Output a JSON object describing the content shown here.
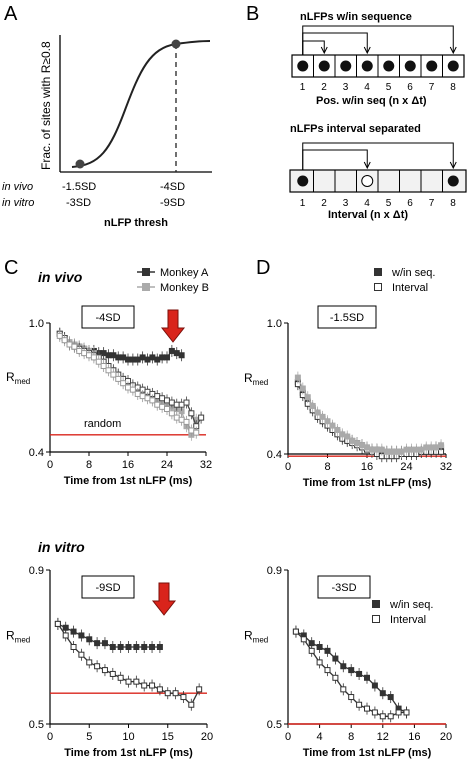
{
  "panels": {
    "A": {
      "letter": "A",
      "ylabel": "Frac. of sites with R≥0.8",
      "xlabel": "nLFP thresh",
      "row_vivo": "in vivo",
      "row_vitro": "in vitro",
      "tick_left_vivo": "-1.5SD",
      "tick_left_vitro": "-3SD",
      "tick_right_vivo": "-4SD",
      "tick_right_vitro": "-9SD"
    },
    "B": {
      "letter": "B",
      "seq_title": "nLFPs w/in sequence",
      "seq_xlabel": "Pos. w/in seq (n x Δt)",
      "int_title": "nLFPs interval separated",
      "int_xlabel": "Interval (n x Δt)",
      "positions": [
        "1",
        "2",
        "3",
        "4",
        "5",
        "6",
        "7",
        "8"
      ]
    },
    "C": {
      "letter": "C",
      "row_label": "in vivo",
      "legend_a": "Monkey A",
      "legend_b": "Monkey B",
      "box": "-4SD",
      "random": "random"
    },
    "D": {
      "letter": "D",
      "legend_seq": "w/in seq.",
      "legend_int": "Interval",
      "box": "-1.5SD"
    },
    "E": {
      "row_label": "in vitro",
      "box": "-9SD"
    },
    "F": {
      "box": "-3SD",
      "legend_seq": "w/in seq.",
      "legend_int": "Interval"
    }
  },
  "colors": {
    "red": "#d9241b",
    "dark": "#333333",
    "gray": "#aaaaaa"
  },
  "chart_data": [
    {
      "id": "A",
      "type": "line",
      "xlabel": "nLFP thresh",
      "ylabel": "Frac. of sites with R≥0.8",
      "note": "sigmoid rising from low point (-1.5SD / -3SD) to high point (-4SD / -9SD)",
      "markers": [
        "-1.5SD / -3SD",
        "-4SD / -9SD"
      ]
    },
    {
      "id": "C",
      "type": "line",
      "xlabel": "Time from 1st nLFP (ms)",
      "ylabel": "Rmed",
      "xlim": [
        0,
        32
      ],
      "ylim": [
        0.4,
        1.0
      ],
      "xticks": [
        0,
        8,
        16,
        24,
        32
      ],
      "yticks": [
        0.4,
        1.0
      ],
      "random_level": 0.48,
      "series": [
        {
          "name": "Monkey A",
          "style": "dark-filled",
          "x": [
            2,
            3,
            4,
            5,
            6,
            7,
            8,
            9,
            10,
            11,
            12,
            13,
            14,
            15,
            16,
            17,
            18,
            19,
            20,
            21,
            22,
            23,
            24,
            25,
            26,
            27
          ],
          "y": [
            0.95,
            0.93,
            0.91,
            0.9,
            0.89,
            0.88,
            0.87,
            0.87,
            0.86,
            0.86,
            0.85,
            0.85,
            0.84,
            0.84,
            0.83,
            0.83,
            0.83,
            0.84,
            0.83,
            0.84,
            0.83,
            0.84,
            0.84,
            0.87,
            0.86,
            0.85
          ]
        },
        {
          "name": "Monkey B",
          "style": "gray-filled",
          "x": [
            2,
            3,
            4,
            5,
            6,
            7,
            8,
            9,
            10,
            11,
            12,
            13,
            14,
            15,
            16,
            17,
            18,
            19,
            20,
            21,
            22,
            23,
            24,
            25,
            26,
            27,
            28,
            29,
            30,
            31
          ],
          "y": [
            0.95,
            0.93,
            0.91,
            0.9,
            0.89,
            0.88,
            0.87,
            0.86,
            0.84,
            0.82,
            0.8,
            0.78,
            0.76,
            0.74,
            0.72,
            0.7,
            0.69,
            0.68,
            0.67,
            0.65,
            0.64,
            0.63,
            0.62,
            0.61,
            0.6,
            0.59,
            0.52,
            0.48,
            0.55,
            0.56
          ]
        },
        {
          "name": "Monkey A interval",
          "style": "dark-open",
          "x": [
            2,
            3,
            4,
            5,
            6,
            7,
            8,
            9,
            10,
            11,
            12,
            13,
            14,
            15,
            16,
            17,
            18,
            19,
            20,
            21,
            22,
            23,
            24,
            25,
            26,
            27,
            28,
            29,
            30,
            31
          ],
          "y": [
            0.95,
            0.93,
            0.9,
            0.89,
            0.88,
            0.87,
            0.86,
            0.85,
            0.84,
            0.82,
            0.8,
            0.78,
            0.76,
            0.74,
            0.73,
            0.71,
            0.7,
            0.69,
            0.68,
            0.67,
            0.66,
            0.65,
            0.64,
            0.63,
            0.62,
            0.62,
            0.63,
            0.58,
            0.52,
            0.56
          ]
        },
        {
          "name": "Monkey B interval",
          "style": "gray-open",
          "x": [
            2,
            3,
            4,
            5,
            6,
            7,
            8,
            9,
            10,
            11,
            12,
            13,
            14,
            15,
            16,
            17,
            18,
            19,
            20,
            21,
            22,
            23,
            24,
            25,
            26,
            27,
            28,
            29,
            30
          ],
          "y": [
            0.94,
            0.92,
            0.9,
            0.89,
            0.87,
            0.86,
            0.85,
            0.84,
            0.82,
            0.8,
            0.78,
            0.76,
            0.74,
            0.72,
            0.7,
            0.69,
            0.67,
            0.66,
            0.65,
            0.64,
            0.62,
            0.61,
            0.6,
            0.58,
            0.56,
            0.55,
            0.54,
            0.5,
            0.49
          ]
        }
      ]
    },
    {
      "id": "D",
      "type": "line",
      "xlabel": "Time from 1st nLFP (ms)",
      "ylabel": "Rmed",
      "xlim": [
        0,
        32
      ],
      "ylim": [
        0.4,
        1.0
      ],
      "xticks": [
        0,
        8,
        16,
        24,
        32
      ],
      "yticks": [
        0.4,
        1.0
      ],
      "random_level": 0.39,
      "series": [
        {
          "name": "w/in seq.",
          "style": "dark-filled",
          "x": [
            2,
            3,
            4,
            5,
            6,
            7,
            8,
            9,
            10,
            11,
            12,
            13,
            14,
            15,
            16,
            17,
            18,
            19,
            20,
            21,
            22,
            23,
            24,
            25,
            26,
            27,
            28,
            29,
            30,
            31
          ],
          "y": [
            0.73,
            0.68,
            0.64,
            0.61,
            0.58,
            0.56,
            0.54,
            0.52,
            0.5,
            0.48,
            0.47,
            0.46,
            0.45,
            0.44,
            0.43,
            0.42,
            0.42,
            0.41,
            0.41,
            0.41,
            0.41,
            0.41,
            0.41,
            0.41,
            0.41,
            0.41,
            0.42,
            0.42,
            0.43,
            0.43
          ]
        },
        {
          "name": "Interval",
          "style": "open",
          "x": [
            2,
            3,
            4,
            5,
            6,
            7,
            8,
            9,
            10,
            11,
            12,
            13,
            14,
            15,
            16,
            17,
            18,
            19,
            20,
            21,
            22,
            23,
            24,
            25,
            26,
            27,
            28,
            29,
            30,
            31
          ],
          "y": [
            0.72,
            0.67,
            0.63,
            0.6,
            0.57,
            0.55,
            0.53,
            0.51,
            0.49,
            0.47,
            0.46,
            0.45,
            0.44,
            0.43,
            0.42,
            0.41,
            0.4,
            0.39,
            0.39,
            0.39,
            0.39,
            0.4,
            0.4,
            0.4,
            0.4,
            0.41,
            0.41,
            0.41,
            0.41,
            0.41
          ]
        },
        {
          "name": "gray",
          "style": "gray-filled",
          "x": [
            2,
            3,
            4,
            5,
            6,
            7,
            8,
            9,
            10,
            11,
            12,
            13,
            14,
            15,
            16,
            17,
            18,
            19,
            20,
            21,
            22,
            23,
            24,
            25,
            26,
            27,
            28,
            29,
            30,
            31
          ],
          "y": [
            0.75,
            0.7,
            0.66,
            0.62,
            0.59,
            0.57,
            0.55,
            0.53,
            0.51,
            0.49,
            0.48,
            0.46,
            0.45,
            0.44,
            0.43,
            0.42,
            0.42,
            0.42,
            0.41,
            0.41,
            0.41,
            0.41,
            0.42,
            0.42,
            0.42,
            0.42,
            0.43,
            0.43,
            0.43,
            0.44
          ]
        }
      ]
    },
    {
      "id": "E",
      "type": "line",
      "xlabel": "Time from 1st nLFP (ms)",
      "ylabel": "Rmed",
      "xlim": [
        0,
        20
      ],
      "ylim": [
        0.5,
        0.9
      ],
      "xticks": [
        0,
        5,
        10,
        15,
        20
      ],
      "yticks": [
        0.5,
        0.9
      ],
      "random_level": 0.58,
      "series": [
        {
          "name": "w/in seq.",
          "style": "dark-filled",
          "x": [
            1,
            2,
            3,
            4,
            5,
            6,
            7,
            8,
            9,
            10,
            11,
            12,
            13,
            14
          ],
          "y": [
            0.76,
            0.75,
            0.74,
            0.73,
            0.72,
            0.71,
            0.71,
            0.7,
            0.7,
            0.7,
            0.7,
            0.7,
            0.7,
            0.7
          ]
        },
        {
          "name": "Interval",
          "style": "open",
          "x": [
            1,
            2,
            3,
            4,
            5,
            6,
            7,
            8,
            9,
            10,
            11,
            12,
            13,
            14,
            15,
            16,
            17,
            18,
            19
          ],
          "y": [
            0.76,
            0.73,
            0.7,
            0.68,
            0.66,
            0.65,
            0.64,
            0.63,
            0.62,
            0.61,
            0.61,
            0.6,
            0.6,
            0.59,
            0.58,
            0.58,
            0.57,
            0.55,
            0.59
          ]
        }
      ]
    },
    {
      "id": "F",
      "type": "line",
      "xlabel": "Time from 1st nLFP (ms)",
      "ylabel": "Rmed",
      "xlim": [
        0,
        20
      ],
      "ylim": [
        0.5,
        0.9
      ],
      "xticks": [
        0,
        4,
        8,
        12,
        16,
        20
      ],
      "yticks": [
        0.5,
        0.9
      ],
      "random_level": 0.5,
      "series": [
        {
          "name": "w/in seq.",
          "style": "dark-filled",
          "x": [
            1,
            2,
            3,
            4,
            5,
            6,
            7,
            8,
            9,
            10,
            11,
            12,
            13,
            14,
            15
          ],
          "y": [
            0.74,
            0.73,
            0.71,
            0.7,
            0.69,
            0.67,
            0.65,
            0.64,
            0.63,
            0.62,
            0.6,
            0.58,
            0.57,
            0.54,
            0.53
          ]
        },
        {
          "name": "Interval",
          "style": "open",
          "x": [
            1,
            2,
            3,
            4,
            5,
            6,
            7,
            8,
            9,
            10,
            11,
            12,
            13,
            14,
            15
          ],
          "y": [
            0.74,
            0.72,
            0.69,
            0.66,
            0.64,
            0.62,
            0.59,
            0.57,
            0.55,
            0.54,
            0.53,
            0.52,
            0.52,
            0.53,
            0.53
          ]
        }
      ]
    }
  ]
}
